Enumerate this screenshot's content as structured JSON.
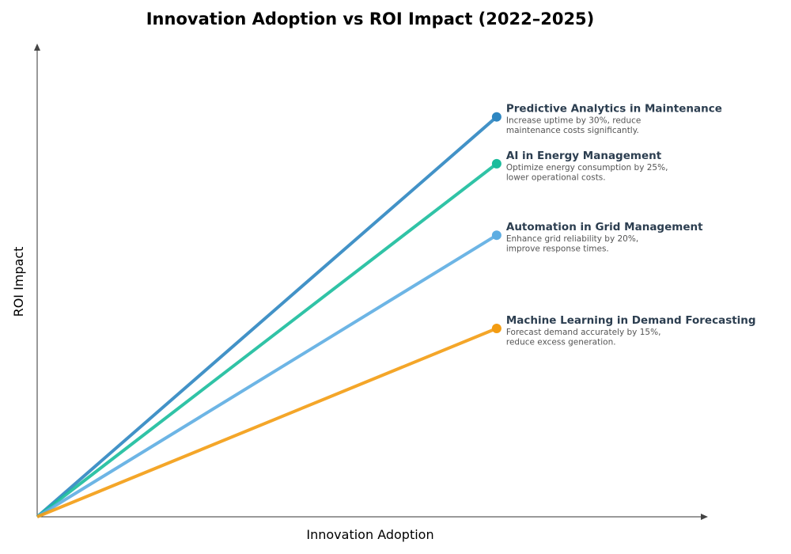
{
  "chart_data": {
    "type": "line",
    "title": "Innovation Adoption vs ROI Impact (2022–2025)",
    "xlabel": "Innovation Adoption",
    "ylabel": "ROI Impact",
    "xlim": [
      0,
      10
    ],
    "ylim": [
      0,
      10
    ],
    "grid": false,
    "ticks": false,
    "series": [
      {
        "name": "Predictive Analytics in Maintenance",
        "description": [
          "Increase uptime by 30%, reduce",
          "maintenance costs significantly."
        ],
        "color": "#2e86c1",
        "x": [
          0,
          6.85
        ],
        "y": [
          0,
          8.45
        ]
      },
      {
        "name": "AI in Energy Management",
        "description": [
          "Optimize energy consumption by 25%,",
          "lower operational costs."
        ],
        "color": "#1abc9c",
        "x": [
          0,
          6.85
        ],
        "y": [
          0,
          7.46
        ]
      },
      {
        "name": "Automation in Grid Management",
        "description": [
          "Enhance grid reliability by 20%,",
          "improve response times."
        ],
        "color": "#5dade2",
        "x": [
          0,
          6.85
        ],
        "y": [
          0,
          5.95
        ]
      },
      {
        "name": "Machine Learning in Demand Forecasting",
        "description": [
          "Forecast demand accurately by 15%,",
          "reduce excess generation."
        ],
        "color": "#f39c12",
        "x": [
          0,
          6.85
        ],
        "y": [
          0,
          3.98
        ]
      }
    ]
  }
}
